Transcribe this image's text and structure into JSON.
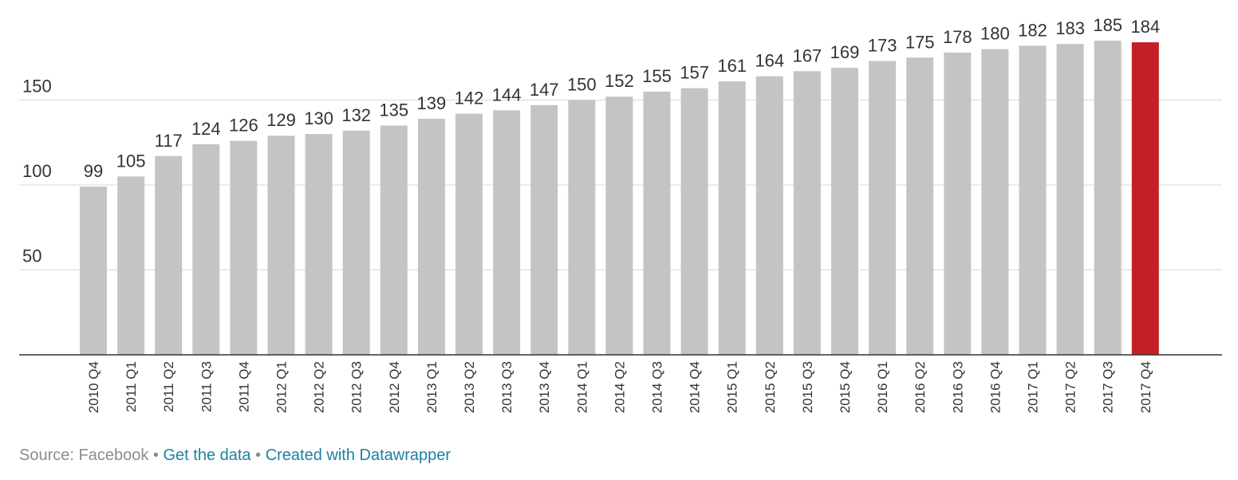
{
  "chart_data": {
    "type": "bar",
    "categories": [
      "2010 Q4",
      "2011 Q1",
      "2011 Q2",
      "2011 Q3",
      "2011 Q4",
      "2012 Q1",
      "2012 Q2",
      "2012 Q3",
      "2012 Q4",
      "2013 Q1",
      "2013 Q2",
      "2013 Q3",
      "2013 Q4",
      "2014 Q1",
      "2014 Q2",
      "2014 Q3",
      "2014 Q4",
      "2015 Q1",
      "2015 Q2",
      "2015 Q3",
      "2015 Q4",
      "2016 Q1",
      "2016 Q2",
      "2016 Q3",
      "2016 Q4",
      "2017 Q1",
      "2017 Q2",
      "2017 Q3",
      "2017 Q4"
    ],
    "values": [
      99,
      105,
      117,
      124,
      126,
      129,
      130,
      132,
      135,
      139,
      142,
      144,
      147,
      150,
      152,
      155,
      157,
      161,
      164,
      167,
      169,
      173,
      175,
      178,
      180,
      182,
      183,
      185,
      184
    ],
    "title": "",
    "xlabel": "",
    "ylabel": "",
    "ylim": [
      0,
      200
    ],
    "yticks": [
      50,
      100,
      150
    ],
    "grid": true,
    "highlight_index": 28,
    "colors": {
      "bar": "#c4c4c4",
      "highlight": "#c21f26",
      "grid": "#d9d9d9",
      "axis": "#333333",
      "text": "#333333"
    }
  },
  "footer": {
    "source": "Source: Facebook",
    "separator": "•",
    "get_data": "Get the data",
    "created_with": "Created with Datawrapper"
  }
}
